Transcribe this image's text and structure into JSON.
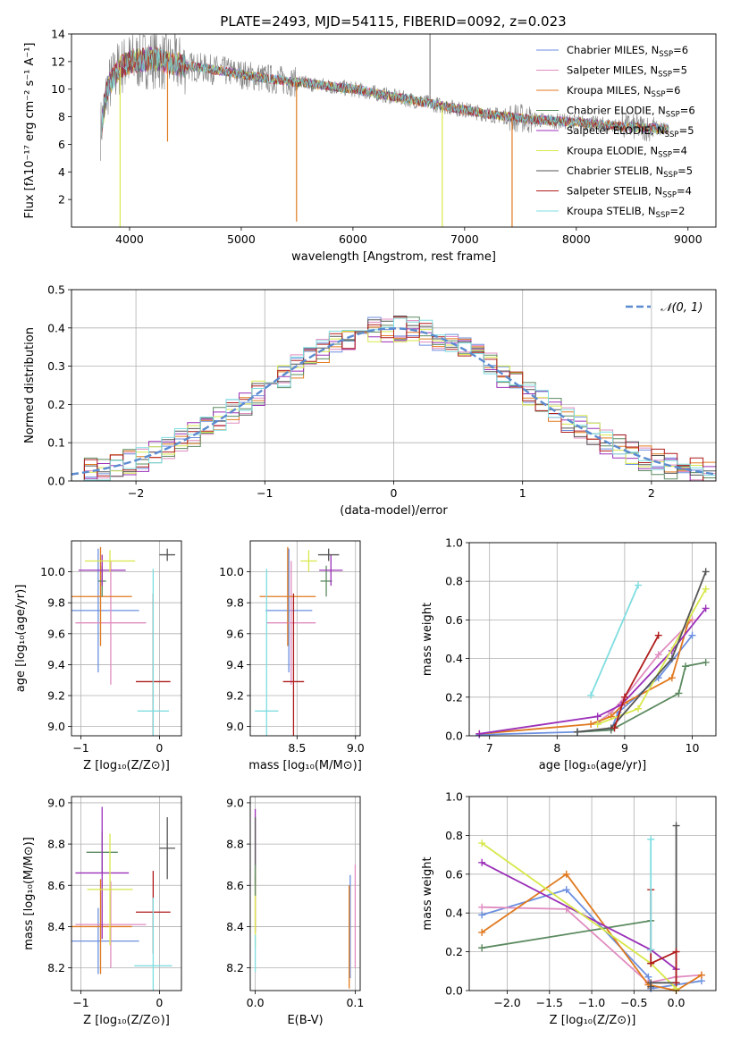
{
  "title": "PLATE=2493, MJD=54115, FIBERID=0092, z=0.023",
  "colors": {
    "Chabrier MILES": "#6b8fe0",
    "Salpeter MILES": "#e08cc0",
    "Kroupa MILES": "#e07a1f",
    "Chabrier ELODIE": "#5c8a60",
    "Salpeter ELODIE": "#9b30b8",
    "Kroupa ELODIE": "#d8e84a",
    "Chabrier STELIB": "#555555",
    "Salpeter STELIB": "#b01c1c",
    "Kroupa STELIB": "#7fdde0",
    "data": "#808080",
    "grid": "#b0b0b0"
  },
  "chart_data": [
    {
      "type": "line",
      "panel": "spectrum",
      "xlabel": "wavelength [Angstrom, rest frame]",
      "ylabel": "Flux [fλ10⁻¹⁷ erg cm⁻² s⁻¹ A⁻¹]",
      "xlim": [
        3480,
        9250
      ],
      "ylim": [
        0,
        14
      ],
      "xticks": [
        4000,
        5000,
        6000,
        7000,
        8000,
        9000
      ],
      "yticks": [
        2,
        4,
        6,
        8,
        10,
        12,
        14
      ],
      "grid": false,
      "legend_position": "top-right",
      "legend": [
        {
          "model": "Chabrier MILES",
          "label": "Chabrier MILES, N",
          "sub": "SSP",
          "suffix": "=6"
        },
        {
          "model": "Salpeter MILES",
          "label": "Salpeter MILES, N",
          "sub": "SSP",
          "suffix": "=5"
        },
        {
          "model": "Kroupa MILES",
          "label": "Kroupa MILES, N",
          "sub": "SSP",
          "suffix": "=6"
        },
        {
          "model": "Chabrier ELODIE",
          "label": "Chabrier ELODIE, N",
          "sub": "SSP",
          "suffix": "=6"
        },
        {
          "model": "Salpeter ELODIE",
          "label": "Salpeter ELODIE, N",
          "sub": "SSP",
          "suffix": "=5"
        },
        {
          "model": "Kroupa ELODIE",
          "label": "Kroupa ELODIE, N",
          "sub": "SSP",
          "suffix": "=4"
        },
        {
          "model": "Chabrier STELIB",
          "label": "Chabrier STELIB, N",
          "sub": "SSP",
          "suffix": "=5"
        },
        {
          "model": "Salpeter STELIB",
          "label": "Salpeter STELIB, N",
          "sub": "SSP",
          "suffix": "=4"
        },
        {
          "model": "Kroupa STELIB",
          "label": "Kroupa STELIB, N",
          "sub": "SSP",
          "suffix": "=2"
        }
      ],
      "continuum": [
        [
          3740,
          7.0
        ],
        [
          3800,
          10.0
        ],
        [
          3900,
          11.5
        ],
        [
          4000,
          12.0
        ],
        [
          4200,
          12.2
        ],
        [
          4500,
          11.7
        ],
        [
          4850,
          11.3
        ],
        [
          5200,
          10.8
        ],
        [
          5600,
          10.4
        ],
        [
          6000,
          10.0
        ],
        [
          6400,
          9.4
        ],
        [
          6800,
          8.8
        ],
        [
          7200,
          8.2
        ],
        [
          7600,
          7.8
        ],
        [
          8000,
          7.6
        ],
        [
          8400,
          7.3
        ],
        [
          8830,
          7.1
        ]
      ],
      "spikes": [
        {
          "x": 3915,
          "y": 0.0,
          "model": "Kroupa ELODIE"
        },
        {
          "x": 4340,
          "y": 6.2,
          "model": "Kroupa MILES"
        },
        {
          "x": 5495,
          "y": 0.4,
          "model": "Kroupa MILES"
        },
        {
          "x": 6800,
          "y": 0.0,
          "model": "Kroupa ELODIE"
        },
        {
          "x": 7425,
          "y": 0.0,
          "model": "Kroupa MILES"
        },
        {
          "x": 6690,
          "y": 14.0,
          "model": "data"
        }
      ]
    },
    {
      "type": "line",
      "panel": "residual_histogram",
      "xlabel": "(data-model)/error",
      "ylabel": "Normed distribution",
      "xlim": [
        -2.5,
        2.5
      ],
      "ylim": [
        0,
        0.5
      ],
      "xticks": [
        -2,
        -1,
        0,
        1,
        2
      ],
      "yticks": [
        0.0,
        0.1,
        0.2,
        0.3,
        0.4,
        0.5
      ],
      "grid": true,
      "legend_position": "top-right",
      "gaussian_label": "𝒩(0, 1)",
      "bin_width": 0.1
    },
    {
      "type": "scatter",
      "panel": "age_vs_Z",
      "xlabel": "Z [log₁₀(Z/Z⊙)]",
      "ylabel": "age  [log₁₀(age/yr)]",
      "xlim": [
        -1.12,
        0.28
      ],
      "ylim": [
        8.94,
        10.2
      ],
      "xticks": [
        -1,
        0
      ],
      "yticks": [
        9.0,
        9.2,
        9.4,
        9.6,
        9.8,
        10.0
      ],
      "grid": true,
      "points": [
        {
          "model": "Chabrier MILES",
          "x": -0.78,
          "xerr": 0.52,
          "y": 9.75,
          "yerr": 0.4
        },
        {
          "model": "Salpeter MILES",
          "x": -0.62,
          "xerr": 0.45,
          "y": 9.67,
          "yerr": 0.4
        },
        {
          "model": "Kroupa MILES",
          "x": -0.75,
          "xerr": 0.4,
          "y": 9.84,
          "yerr": 0.32
        },
        {
          "model": "Chabrier ELODIE",
          "x": -0.73,
          "xerr": 0.05,
          "y": 9.94,
          "yerr": 0.1
        },
        {
          "model": "Salpeter ELODIE",
          "x": -0.73,
          "xerr": 0.3,
          "y": 10.01,
          "yerr": 0.1
        },
        {
          "model": "Kroupa ELODIE",
          "x": -0.63,
          "xerr": 0.32,
          "y": 10.07,
          "yerr": 0.07
        },
        {
          "model": "Chabrier STELIB",
          "x": 0.1,
          "xerr": 0.1,
          "y": 10.11,
          "yerr": 0.04
        },
        {
          "model": "Salpeter STELIB",
          "x": -0.08,
          "xerr": 0.22,
          "y": 9.29,
          "yerr": 0.57
        },
        {
          "model": "Kroupa STELIB",
          "x": -0.08,
          "xerr": 0.2,
          "y": 9.1,
          "yerr": 0.92
        }
      ]
    },
    {
      "type": "scatter",
      "panel": "age_vs_mass",
      "xlabel": "mass [log₁₀(M/M⊙)]",
      "ylabel": "",
      "xlim": [
        8.1,
        9.04
      ],
      "ylim": [
        8.94,
        10.2
      ],
      "xticks": [
        8.5,
        9.0
      ],
      "yticks": [
        9.0,
        9.2,
        9.4,
        9.6,
        9.8,
        10.0
      ],
      "grid": true,
      "points": [
        {
          "model": "Chabrier MILES",
          "x": 8.43,
          "xerr": 0.2,
          "y": 9.75,
          "yerr": 0.4
        },
        {
          "model": "Salpeter MILES",
          "x": 8.45,
          "xerr": 0.21,
          "y": 9.67,
          "yerr": 0.4
        },
        {
          "model": "Kroupa MILES",
          "x": 8.42,
          "xerr": 0.24,
          "y": 9.84,
          "yerr": 0.32
        },
        {
          "model": "Chabrier ELODIE",
          "x": 8.75,
          "xerr": 0.05,
          "y": 9.94,
          "yerr": 0.1
        },
        {
          "model": "Salpeter ELODIE",
          "x": 8.79,
          "xerr": 0.1,
          "y": 10.01,
          "yerr": 0.1
        },
        {
          "model": "Kroupa ELODIE",
          "x": 8.6,
          "xerr": 0.07,
          "y": 10.07,
          "yerr": 0.07
        },
        {
          "model": "Chabrier STELIB",
          "x": 8.77,
          "xerr": 0.09,
          "y": 10.11,
          "yerr": 0.04
        },
        {
          "model": "Salpeter STELIB",
          "x": 8.47,
          "xerr": 0.09,
          "y": 9.29,
          "yerr": 0.57
        },
        {
          "model": "Kroupa STELIB",
          "x": 8.24,
          "xerr": 0.1,
          "y": 9.1,
          "yerr": 0.92
        }
      ]
    },
    {
      "type": "line",
      "panel": "mass_weight_vs_age",
      "xlabel": "age  [log₁₀(age/yr)]",
      "ylabel": "mass weight",
      "xlim": [
        6.7,
        10.35
      ],
      "ylim": [
        0,
        1.0
      ],
      "xticks": [
        7,
        8,
        9,
        10
      ],
      "yticks": [
        0.0,
        0.2,
        0.4,
        0.6,
        0.8,
        1.0
      ],
      "grid": true,
      "series": [
        {
          "model": "Chabrier MILES",
          "x": [
            6.85,
            8.3,
            8.8,
            8.9,
            9.5,
            10.0
          ],
          "y": [
            0.005,
            0.02,
            0.03,
            0.12,
            0.3,
            0.52
          ]
        },
        {
          "model": "Salpeter MILES",
          "x": [
            8.6,
            8.8,
            9.0,
            9.5,
            10.0
          ],
          "y": [
            0.07,
            0.12,
            0.2,
            0.42,
            0.6
          ]
        },
        {
          "model": "Kroupa MILES",
          "x": [
            6.85,
            8.5,
            8.8,
            9.0,
            9.7,
            9.95
          ],
          "y": [
            0.01,
            0.06,
            0.1,
            0.17,
            0.3,
            0.6
          ]
        },
        {
          "model": "Chabrier ELODIE",
          "x": [
            8.3,
            8.8,
            9.8,
            9.9,
            10.2
          ],
          "y": [
            0.02,
            0.03,
            0.22,
            0.36,
            0.38
          ]
        },
        {
          "model": "Salpeter ELODIE",
          "x": [
            6.85,
            8.6,
            8.95,
            9.7,
            10.2
          ],
          "y": [
            0.01,
            0.1,
            0.16,
            0.44,
            0.66
          ]
        },
        {
          "model": "Kroupa ELODIE",
          "x": [
            8.6,
            9.2,
            10.2
          ],
          "y": [
            0.06,
            0.14,
            0.76
          ]
        },
        {
          "model": "Chabrier STELIB",
          "x": [
            8.3,
            8.8,
            9.7,
            10.2
          ],
          "y": [
            0.02,
            0.04,
            0.4,
            0.85
          ]
        },
        {
          "model": "Salpeter STELIB",
          "x": [
            8.85,
            9.0,
            9.5
          ],
          "y": [
            0.04,
            0.2,
            0.52
          ]
        },
        {
          "model": "Kroupa STELIB",
          "x": [
            8.5,
            9.2
          ],
          "y": [
            0.21,
            0.78
          ]
        }
      ]
    },
    {
      "type": "scatter",
      "panel": "mass_vs_Z",
      "xlabel": "Z [log₁₀(Z/Z⊙)]",
      "ylabel": "mass [log₁₀(M/M⊙)]",
      "xlim": [
        -1.12,
        0.28
      ],
      "ylim": [
        8.09,
        9.03
      ],
      "xticks": [
        -1,
        0
      ],
      "yticks": [
        8.2,
        8.4,
        8.6,
        8.8,
        9.0
      ],
      "grid": true,
      "points": [
        {
          "model": "Chabrier MILES",
          "x": -0.78,
          "xerr": 0.52,
          "y": 8.33,
          "yerr": 0.16
        },
        {
          "model": "Salpeter MILES",
          "x": -0.62,
          "xerr": 0.45,
          "y": 8.41,
          "yerr": 0.21
        },
        {
          "model": "Kroupa MILES",
          "x": -0.75,
          "xerr": 0.4,
          "y": 8.4,
          "yerr": 0.23
        },
        {
          "model": "Chabrier ELODIE",
          "x": -0.73,
          "xerr": 0.2,
          "y": 8.76,
          "yerr": 0.1
        },
        {
          "model": "Salpeter ELODIE",
          "x": -0.73,
          "xerr": 0.34,
          "y": 8.66,
          "yerr": 0.32
        },
        {
          "model": "Kroupa ELODIE",
          "x": -0.63,
          "xerr": 0.29,
          "y": 8.58,
          "yerr": 0.27
        },
        {
          "model": "Chabrier STELIB",
          "x": 0.1,
          "xerr": 0.1,
          "y": 8.78,
          "yerr": 0.15
        },
        {
          "model": "Salpeter STELIB",
          "x": -0.08,
          "xerr": 0.22,
          "y": 8.47,
          "yerr": 0.2
        },
        {
          "model": "Kroupa STELIB",
          "x": -0.08,
          "xerr": 0.24,
          "y": 8.21,
          "yerr": 0.33
        }
      ]
    },
    {
      "type": "line",
      "panel": "mass_vs_ebv",
      "xlabel": "E(B-V)",
      "ylabel": "",
      "xlim": [
        -0.005,
        0.105
      ],
      "ylim": [
        8.09,
        9.03
      ],
      "xticks": [
        0.0,
        0.1
      ],
      "yticks": [
        8.2,
        8.4,
        8.6,
        8.8,
        9.0
      ],
      "grid": true,
      "segments": [
        {
          "model": "Salpeter ELODIE",
          "x": 0.0,
          "y": [
            8.6,
            8.97
          ]
        },
        {
          "model": "Chabrier STELIB",
          "x": 0.0,
          "y": [
            8.62,
            8.93
          ]
        },
        {
          "model": "Salpeter STELIB",
          "x": 0.0,
          "y": [
            8.37,
            8.65
          ]
        },
        {
          "model": "Kroupa ELODIE",
          "x": 0.0,
          "y": [
            8.3,
            8.68
          ]
        },
        {
          "model": "Kroupa STELIB",
          "x": 0.0,
          "y": [
            8.18,
            8.36
          ]
        },
        {
          "model": "Chabrier ELODIE",
          "x": 0.0,
          "y": [
            8.55,
            8.7
          ]
        },
        {
          "model": "Chabrier MILES",
          "x": 0.095,
          "y": [
            8.15,
            8.65
          ]
        },
        {
          "model": "Salpeter MILES",
          "x": 0.1,
          "y": [
            8.2,
            8.7
          ]
        },
        {
          "model": "Kroupa MILES",
          "x": 0.094,
          "y": [
            8.1,
            8.6
          ]
        }
      ]
    },
    {
      "type": "line",
      "panel": "mass_weight_vs_Z",
      "xlabel": "Z [log₁₀(Z/Z⊙)]",
      "ylabel": "mass weight",
      "xlim": [
        -2.45,
        0.47
      ],
      "ylim": [
        0,
        1.0
      ],
      "xticks": [
        -2.0,
        -1.5,
        -1.0,
        -0.5,
        0.0
      ],
      "yticks": [
        0.0,
        0.2,
        0.4,
        0.6,
        0.8,
        1.0
      ],
      "grid": true,
      "series": [
        {
          "model": "Chabrier MILES",
          "x": [
            -2.3,
            -1.3,
            -0.33,
            -0.3,
            0.3
          ],
          "y": [
            0.39,
            0.52,
            0.07,
            0.01,
            0.05
          ]
        },
        {
          "model": "Salpeter MILES",
          "x": [
            -2.3,
            -1.3,
            -0.33,
            0.0,
            0.3
          ],
          "y": [
            0.43,
            0.42,
            0.04,
            0.07,
            0.08
          ]
        },
        {
          "model": "Kroupa MILES",
          "x": [
            -2.3,
            -1.3,
            -0.33,
            0.0,
            0.3
          ],
          "y": [
            0.3,
            0.6,
            0.03,
            0.0,
            0.08
          ]
        },
        {
          "model": "Chabrier ELODIE",
          "x": [
            -2.3,
            -0.3
          ],
          "y": [
            0.22,
            0.36
          ]
        },
        {
          "model": "Salpeter ELODIE",
          "x": [
            -2.3,
            -0.3,
            0.0
          ],
          "y": [
            0.66,
            0.21,
            0.11
          ]
        },
        {
          "model": "Kroupa ELODIE",
          "x": [
            -2.3,
            -0.3,
            0.0
          ],
          "y": [
            0.76,
            0.14,
            0.01
          ]
        },
        {
          "model": "Chabrier STELIB",
          "x": [
            -0.3,
            -0.3,
            0.0,
            0.0
          ],
          "y": [
            0.02,
            0.04,
            0.04,
            0.85
          ]
        },
        {
          "model": "Salpeter STELIB",
          "x": [
            -0.3,
            -0.3,
            0.0,
            0.0
          ],
          "y": [
            0.52,
            0.14,
            0.2,
            0.04
          ]
        },
        {
          "model": "Kroupa STELIB",
          "x": [
            -0.3,
            -0.3
          ],
          "y": [
            0.21,
            0.78
          ]
        }
      ]
    }
  ]
}
